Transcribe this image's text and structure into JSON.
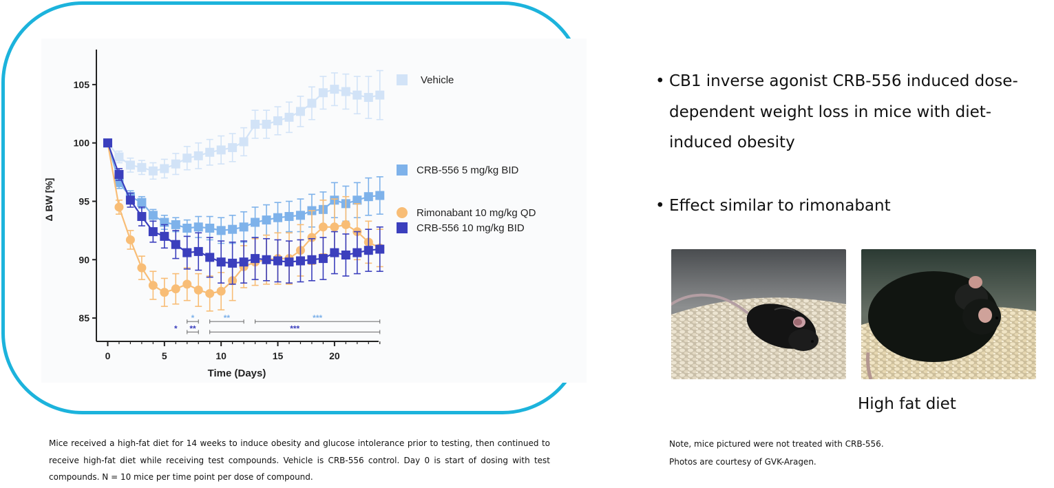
{
  "chart_data": {
    "type": "line",
    "xlabel": "Time (Days)",
    "ylabel": "Δ BW [%]",
    "xlim": [
      -1,
      24.5
    ],
    "ylim": [
      83,
      108
    ],
    "xticks": [
      0,
      5,
      10,
      15,
      20
    ],
    "yticks": [
      85,
      90,
      95,
      100,
      105
    ],
    "legend_position": "right",
    "series": [
      {
        "name": "Vehicle",
        "color": "#d2e3f7",
        "marker": "square",
        "x": [
          0,
          1,
          2,
          3,
          4,
          5,
          6,
          7,
          8,
          9,
          10,
          11,
          12,
          13,
          14,
          15,
          16,
          17,
          18,
          19,
          20,
          21,
          22,
          23,
          24
        ],
        "y": [
          100,
          98.8,
          98.1,
          97.9,
          97.6,
          97.8,
          98.2,
          98.7,
          98.9,
          99.2,
          99.4,
          99.6,
          100.1,
          101.6,
          101.6,
          101.9,
          102.2,
          102.7,
          103.4,
          104.3,
          104.6,
          104.4,
          104.1,
          103.9,
          104.1
        ],
        "err": [
          0,
          0.5,
          0.6,
          0.6,
          0.7,
          0.8,
          0.9,
          1.0,
          1.1,
          1.1,
          1.2,
          1.2,
          1.2,
          1.2,
          1.2,
          1.2,
          1.3,
          1.3,
          1.4,
          1.4,
          1.4,
          1.5,
          1.6,
          1.8,
          2.1
        ]
      },
      {
        "name": "CRB-556 5 mg/kg BID",
        "color": "#7eb2ea",
        "marker": "square",
        "x": [
          0,
          1,
          2,
          3,
          4,
          5,
          6,
          7,
          8,
          9,
          10,
          11,
          12,
          13,
          14,
          15,
          16,
          17,
          18,
          19,
          20,
          21,
          22,
          23,
          24
        ],
        "y": [
          100,
          96.6,
          95.4,
          94.9,
          93.8,
          93.2,
          93.0,
          92.7,
          92.8,
          92.7,
          92.5,
          92.6,
          92.8,
          93.2,
          93.4,
          93.6,
          93.7,
          93.8,
          94.2,
          94.3,
          95.1,
          94.8,
          95.1,
          95.4,
          95.5
        ],
        "err": [
          0,
          0.5,
          0.5,
          0.5,
          0.5,
          0.6,
          0.6,
          0.7,
          0.9,
          1.0,
          1.1,
          1.2,
          1.3,
          1.3,
          1.3,
          1.3,
          1.3,
          1.4,
          1.4,
          1.5,
          1.5,
          1.5,
          1.5,
          1.6,
          1.6
        ]
      },
      {
        "name": "Rimonabant 10 mg/kg QD",
        "color": "#f8bd76",
        "marker": "circle",
        "x": [
          0,
          1,
          2,
          3,
          4,
          5,
          6,
          7,
          8,
          9,
          10,
          11,
          12,
          13,
          14,
          15,
          16,
          17,
          18,
          19,
          20,
          21,
          22,
          23,
          24
        ],
        "y": [
          100,
          94.5,
          91.7,
          89.3,
          87.8,
          87.2,
          87.5,
          87.9,
          87.4,
          87.1,
          87.3,
          88.2,
          89.4,
          89.8,
          90.0,
          90.1,
          90.1,
          90.8,
          91.9,
          92.8,
          92.8,
          93.0,
          92.4,
          91.5,
          91.0
        ],
        "err": [
          0,
          0.6,
          0.8,
          1.0,
          1.2,
          1.2,
          1.3,
          1.4,
          1.4,
          1.5,
          1.6,
          1.7,
          1.8,
          2.0,
          2.1,
          2.2,
          2.2,
          2.2,
          2.3,
          2.3,
          2.4,
          2.4,
          2.4,
          1.8,
          1.6
        ]
      },
      {
        "name": "CRB-556 10 mg/kg BID",
        "color": "#3b3fbd",
        "marker": "square",
        "x": [
          0,
          1,
          2,
          3,
          4,
          5,
          6,
          7,
          8,
          9,
          10,
          11,
          12,
          13,
          14,
          15,
          16,
          17,
          18,
          19,
          20,
          21,
          22,
          23,
          24
        ],
        "y": [
          100,
          97.3,
          95.1,
          93.7,
          92.4,
          92.0,
          91.3,
          90.6,
          90.7,
          90.2,
          89.8,
          89.7,
          89.8,
          90.1,
          90.0,
          89.9,
          89.8,
          89.9,
          90.0,
          90.1,
          90.6,
          90.4,
          90.6,
          90.8,
          90.9
        ],
        "err": [
          0,
          0.5,
          0.6,
          0.8,
          0.9,
          1.0,
          1.2,
          1.4,
          1.6,
          1.7,
          1.8,
          1.8,
          1.8,
          1.8,
          1.8,
          1.8,
          1.8,
          1.8,
          1.8,
          1.8,
          1.8,
          1.8,
          1.8,
          1.8,
          1.9
        ]
      }
    ],
    "annotations": [
      {
        "text": "*",
        "color": "#7eb2ea",
        "x_from": 7,
        "x_to": 8,
        "y": 84.7
      },
      {
        "text": "**",
        "color": "#7eb2ea",
        "x_from": 9,
        "x_to": 12,
        "y": 84.7
      },
      {
        "text": "***",
        "color": "#7eb2ea",
        "x_from": 13,
        "x_to": 24,
        "y": 84.7
      },
      {
        "text": "*",
        "color": "#3b3fbd",
        "x_from": 6,
        "x_to": 6,
        "y": 83.8
      },
      {
        "text": "**",
        "color": "#3b3fbd",
        "x_from": 7,
        "x_to": 8,
        "y": 83.8
      },
      {
        "text": "***",
        "color": "#3b3fbd",
        "x_from": 9,
        "x_to": 24,
        "y": 83.8
      }
    ]
  },
  "caption": "Mice received a high-fat diet for 14 weeks to induce obesity and glucose intolerance prior to testing, then continued to receive high-fat diet while receiving test compounds. Vehicle is CRB-556 control. Day 0 is start of dosing with test compounds. N = 10 mice per time point per dose of compound.",
  "bullets": [
    "CB1 inverse agonist CRB-556 induced dose-dependent weight loss in mice with diet-induced obesity",
    "Effect similar to rimonabant"
  ],
  "bullet_marker": "•",
  "photo_caption": "High fat diet",
  "note_lines": [
    "Note, mice pictured were not treated with CRB-556.",
    "Photos are courtesy of GVK-Aragen."
  ],
  "colors": {
    "frame": "#1cb3dc"
  }
}
